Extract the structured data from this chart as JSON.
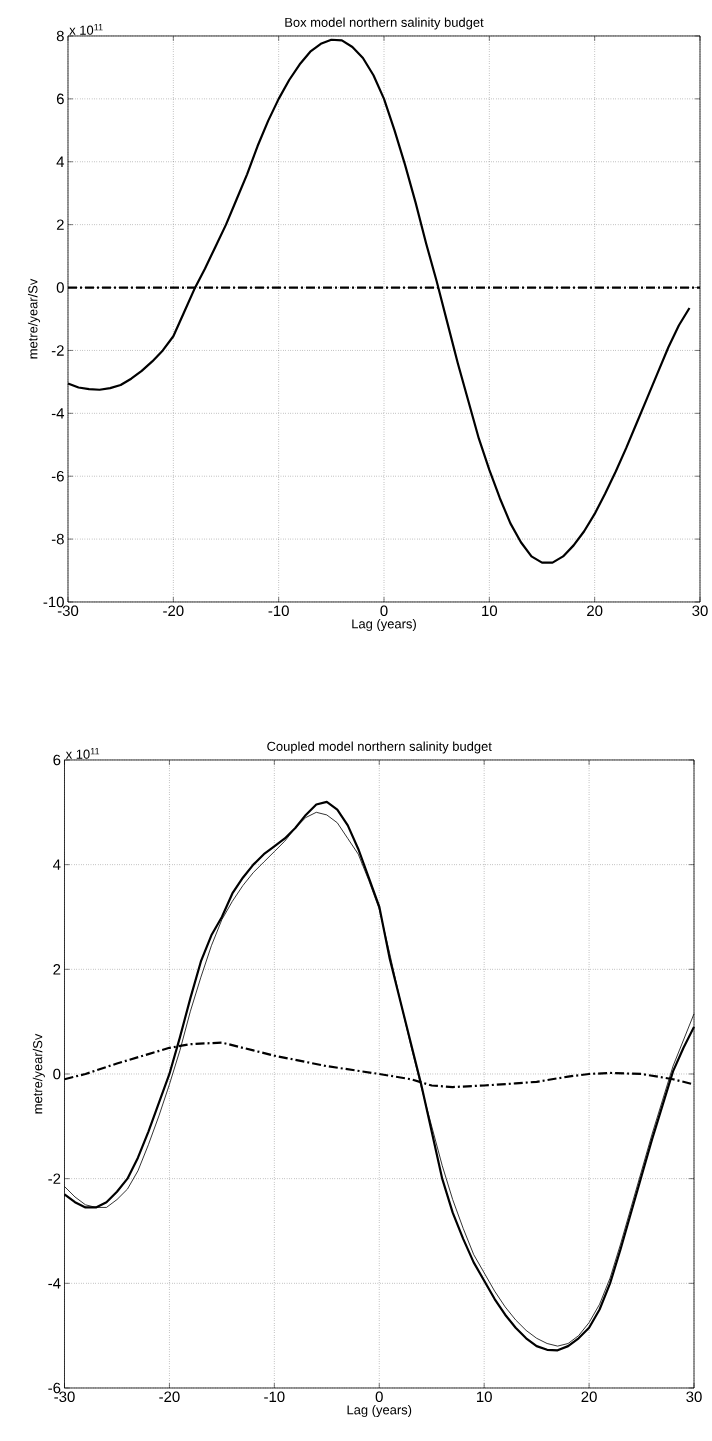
{
  "chart_data": [
    {
      "type": "line",
      "title": "Box model northern salinity budget",
      "xlabel": "Lag (years)",
      "ylabel": "metre/year/Sv",
      "annotations": [
        "x 10$^{11}$"
      ],
      "xlim": [
        -30,
        30
      ],
      "ylim": [
        -10,
        8
      ],
      "xticks": [
        -30,
        -20,
        -10,
        0,
        10,
        20,
        30
      ],
      "yticks": [
        -10,
        -8,
        -6,
        -4,
        -2,
        0,
        2,
        4,
        6,
        8
      ],
      "grid": true,
      "ref_lines": [
        {
          "axis": "y",
          "value": 0,
          "color": "#000000",
          "line_style": "dashdot"
        }
      ],
      "series": [
        {
          "color": "#000000",
          "line_style": "solid",
          "x": [
            -30,
            -29,
            -28,
            -27,
            -26,
            -25,
            -24,
            -23,
            -22,
            -21,
            -20,
            -19,
            -18,
            -17,
            -16,
            -15,
            -14,
            -13,
            -12,
            -11,
            -10,
            -9,
            -8,
            -7,
            -6,
            -5,
            -4,
            -3,
            -2,
            -1,
            0,
            1,
            2,
            3,
            4,
            5,
            6,
            7,
            8,
            9,
            10,
            11,
            12,
            13,
            14,
            15,
            16,
            17,
            18,
            19,
            20,
            21,
            22,
            23,
            24,
            25,
            26,
            27,
            28,
            29
          ],
          "values": [
            -3.05,
            -3.18,
            -3.23,
            -3.25,
            -3.2,
            -3.1,
            -2.9,
            -2.65,
            -2.35,
            -2.0,
            -1.55,
            -0.8,
            -0.05,
            0.6,
            1.3,
            2.0,
            2.8,
            3.6,
            4.5,
            5.3,
            6.0,
            6.6,
            7.1,
            7.5,
            7.75,
            7.88,
            7.86,
            7.65,
            7.3,
            6.75,
            6.0,
            5.0,
            3.9,
            2.7,
            1.4,
            0.2,
            -1.1,
            -2.4,
            -3.6,
            -4.8,
            -5.8,
            -6.7,
            -7.5,
            -8.1,
            -8.55,
            -8.75,
            -8.75,
            -8.55,
            -8.2,
            -7.75,
            -7.2,
            -6.55,
            -5.85,
            -5.1,
            -4.3,
            -3.5,
            -2.7,
            -1.9,
            -1.2,
            -0.65
          ]
        }
      ]
    },
    {
      "type": "line",
      "title": "Coupled model northern salinity budget",
      "xlabel": "Lag (years)",
      "ylabel": "metre/year/Sv",
      "annotations": [
        "x 10$^{11}$"
      ],
      "xlim": [
        -30,
        30
      ],
      "ylim": [
        -6,
        6
      ],
      "xticks": [
        -30,
        -20,
        -10,
        0,
        10,
        20,
        30
      ],
      "yticks": [
        -6,
        -4,
        -2,
        0,
        2,
        4,
        6
      ],
      "grid": true,
      "series": [
        {
          "color": "#000000",
          "line_style": "solid",
          "x": [
            -30,
            -29,
            -28,
            -27,
            -26,
            -25,
            -24,
            -23,
            -22,
            -21,
            -20,
            -19,
            -18,
            -17,
            -16,
            -15,
            -14,
            -13,
            -12,
            -11,
            -10,
            -9,
            -8,
            -7,
            -6,
            -5,
            -4,
            -3,
            -2,
            -1,
            0,
            1,
            2,
            3,
            4,
            5,
            6,
            7,
            8,
            9,
            10,
            11,
            12,
            13,
            14,
            15,
            16,
            17,
            18,
            19,
            20,
            21,
            22,
            23,
            24,
            25,
            26,
            27,
            28,
            29,
            30
          ],
          "values": [
            -2.3,
            -2.45,
            -2.55,
            -2.55,
            -2.45,
            -2.25,
            -2.0,
            -1.6,
            -1.1,
            -0.55,
            0.0,
            0.7,
            1.45,
            2.15,
            2.65,
            3.0,
            3.45,
            3.75,
            4.0,
            4.2,
            4.35,
            4.5,
            4.7,
            4.95,
            5.15,
            5.2,
            5.05,
            4.75,
            4.3,
            3.75,
            3.2,
            2.2,
            1.4,
            0.6,
            -0.2,
            -1.1,
            -2.0,
            -2.65,
            -3.15,
            -3.6,
            -3.95,
            -4.3,
            -4.6,
            -4.85,
            -5.05,
            -5.2,
            -5.27,
            -5.28,
            -5.2,
            -5.05,
            -4.85,
            -4.5,
            -4.0,
            -3.35,
            -2.65,
            -1.95,
            -1.25,
            -0.6,
            0.05,
            0.5,
            0.9
          ]
        },
        {
          "color": "#000000",
          "line_style": "solid",
          "x": [
            -30,
            -29,
            -28,
            -27,
            -26,
            -25,
            -24,
            -23,
            -22,
            -21,
            -20,
            -19,
            -18,
            -17,
            -16,
            -15,
            -14,
            -13,
            -12,
            -11,
            -10,
            -9,
            -8,
            -7,
            -6,
            -5,
            -4,
            -3,
            -2,
            -1,
            0,
            1,
            2,
            3,
            4,
            5,
            6,
            7,
            8,
            9,
            10,
            11,
            12,
            13,
            14,
            15,
            16,
            17,
            18,
            19,
            20,
            21,
            22,
            23,
            24,
            25,
            26,
            27,
            28,
            29,
            30
          ],
          "values": [
            -2.15,
            -2.35,
            -2.5,
            -2.55,
            -2.55,
            -2.4,
            -2.2,
            -1.85,
            -1.35,
            -0.8,
            -0.2,
            0.45,
            1.2,
            1.85,
            2.45,
            2.95,
            3.3,
            3.6,
            3.85,
            4.05,
            4.25,
            4.45,
            4.7,
            4.9,
            5.0,
            4.95,
            4.8,
            4.5,
            4.2,
            3.7,
            3.15,
            2.3,
            1.4,
            0.55,
            -0.25,
            -1.0,
            -1.75,
            -2.4,
            -2.95,
            -3.45,
            -3.8,
            -4.15,
            -4.45,
            -4.7,
            -4.9,
            -5.05,
            -5.15,
            -5.2,
            -5.15,
            -5.0,
            -4.75,
            -4.4,
            -3.9,
            -3.25,
            -2.55,
            -1.85,
            -1.15,
            -0.5,
            0.15,
            0.65,
            1.15
          ]
        },
        {
          "color": "#000000",
          "line_style": "dashdot",
          "x": [
            -30,
            -28,
            -25,
            -22,
            -20,
            -18,
            -15,
            -12,
            -10,
            -5,
            0,
            3,
            5,
            7,
            10,
            13,
            15,
            18,
            20,
            22,
            25,
            28,
            30
          ],
          "values": [
            -0.1,
            0.0,
            0.2,
            0.38,
            0.5,
            0.57,
            0.6,
            0.45,
            0.35,
            0.15,
            0.0,
            -0.1,
            -0.22,
            -0.25,
            -0.22,
            -0.18,
            -0.15,
            -0.05,
            0.0,
            0.02,
            0.0,
            -0.1,
            -0.2
          ]
        }
      ]
    }
  ]
}
